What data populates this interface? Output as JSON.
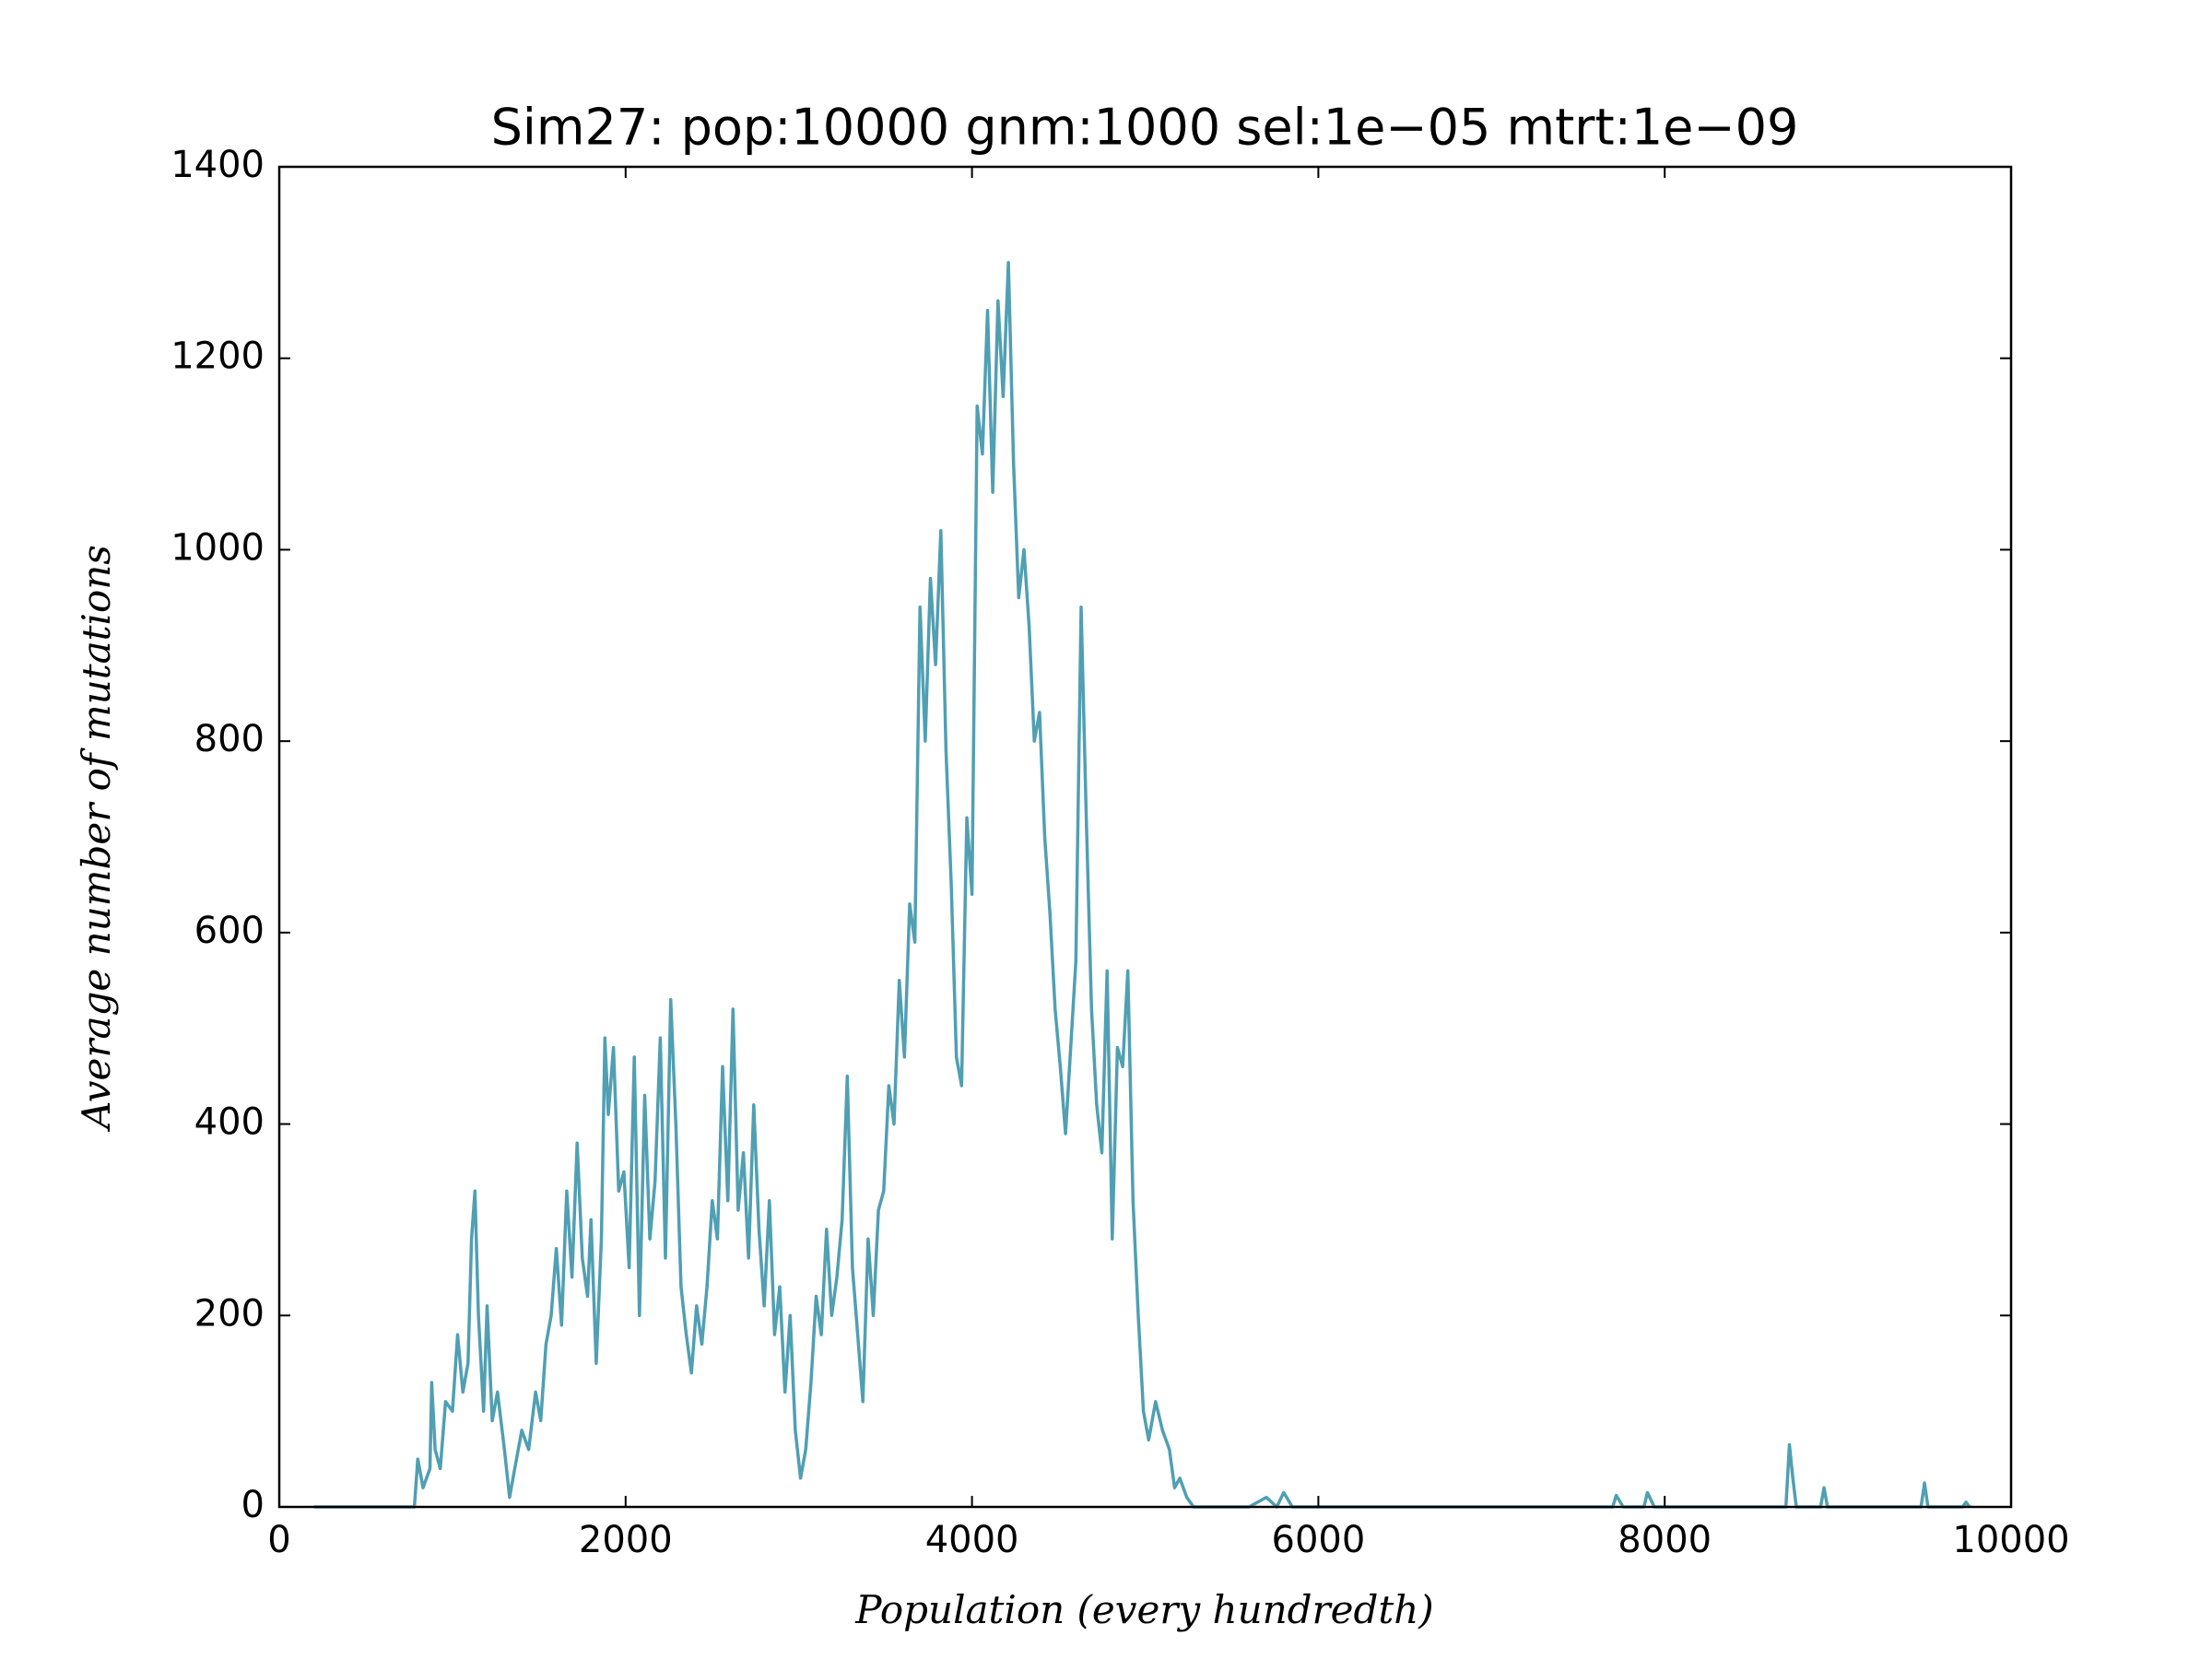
{
  "chart_data": {
    "type": "line",
    "title": "Sim27: pop:10000 gnm:1000 sel:1e−05 mtrt:1e−09",
    "x_label": "Population (every hundredth)",
    "y_label": "Average number of mutations",
    "color": "#509fb3",
    "grid": false,
    "xlim": [
      0,
      10000
    ],
    "xticks": [
      0,
      2000,
      4000,
      6000,
      8000,
      10000
    ],
    "ylim": [
      0,
      1400
    ],
    "yticks": [
      0,
      200,
      400,
      600,
      800,
      1000,
      1200,
      1400
    ],
    "x": [
      200,
      400,
      700,
      780,
      800,
      830,
      870,
      880,
      900,
      930,
      960,
      1000,
      1030,
      1060,
      1090,
      1110,
      1130,
      1150,
      1180,
      1200,
      1230,
      1260,
      1300,
      1330,
      1360,
      1400,
      1440,
      1480,
      1510,
      1540,
      1570,
      1600,
      1630,
      1660,
      1690,
      1720,
      1750,
      1780,
      1800,
      1830,
      1860,
      1880,
      1900,
      1930,
      1960,
      1990,
      2020,
      2050,
      2080,
      2110,
      2140,
      2170,
      2200,
      2230,
      2260,
      2290,
      2320,
      2350,
      2380,
      2410,
      2440,
      2470,
      2500,
      2530,
      2560,
      2590,
      2620,
      2650,
      2680,
      2710,
      2740,
      2770,
      2800,
      2830,
      2860,
      2890,
      2920,
      2950,
      2980,
      3010,
      3040,
      3070,
      3100,
      3130,
      3160,
      3190,
      3220,
      3250,
      3280,
      3310,
      3340,
      3370,
      3400,
      3430,
      3460,
      3490,
      3520,
      3550,
      3580,
      3610,
      3640,
      3670,
      3700,
      3730,
      3760,
      3790,
      3820,
      3850,
      3880,
      3910,
      3940,
      3970,
      4000,
      4030,
      4060,
      4090,
      4120,
      4150,
      4180,
      4210,
      4240,
      4270,
      4300,
      4330,
      4360,
      4390,
      4420,
      4450,
      4480,
      4510,
      4540,
      4570,
      4600,
      4630,
      4660,
      4690,
      4720,
      4750,
      4780,
      4810,
      4840,
      4870,
      4900,
      4930,
      4960,
      4990,
      5020,
      5060,
      5100,
      5140,
      5170,
      5200,
      5240,
      5280,
      5600,
      5700,
      5760,
      5800,
      5850,
      7700,
      7720,
      7760,
      7880,
      7900,
      7940,
      8700,
      8720,
      8740,
      8760,
      8900,
      8920,
      8940,
      9480,
      9500,
      9520,
      9720,
      9740,
      9760
    ],
    "values": [
      0,
      0,
      0,
      0,
      50,
      20,
      40,
      130,
      60,
      40,
      110,
      100,
      180,
      120,
      150,
      280,
      330,
      200,
      100,
      210,
      90,
      120,
      60,
      10,
      40,
      80,
      60,
      120,
      90,
      170,
      200,
      270,
      190,
      330,
      240,
      380,
      260,
      220,
      300,
      150,
      280,
      490,
      410,
      480,
      330,
      350,
      250,
      470,
      200,
      430,
      280,
      340,
      490,
      260,
      530,
      400,
      230,
      180,
      140,
      210,
      170,
      230,
      320,
      280,
      460,
      320,
      520,
      310,
      370,
      260,
      420,
      290,
      210,
      320,
      180,
      230,
      120,
      200,
      80,
      30,
      60,
      130,
      220,
      180,
      290,
      200,
      240,
      300,
      450,
      250,
      180,
      110,
      280,
      200,
      310,
      330,
      440,
      400,
      550,
      470,
      630,
      590,
      940,
      800,
      970,
      880,
      1020,
      790,
      650,
      470,
      440,
      720,
      640,
      1150,
      1100,
      1250,
      1060,
      1260,
      1160,
      1300,
      1090,
      950,
      1000,
      920,
      800,
      830,
      700,
      620,
      520,
      460,
      390,
      480,
      570,
      940,
      720,
      520,
      420,
      370,
      560,
      280,
      480,
      460,
      560,
      320,
      200,
      100,
      70,
      110,
      80,
      60,
      20,
      30,
      10,
      0,
      0,
      10,
      0,
      15,
      0,
      0,
      12,
      0,
      0,
      15,
      0,
      0,
      65,
      30,
      0,
      0,
      20,
      0,
      0,
      25,
      0,
      0,
      5,
      0
    ]
  }
}
